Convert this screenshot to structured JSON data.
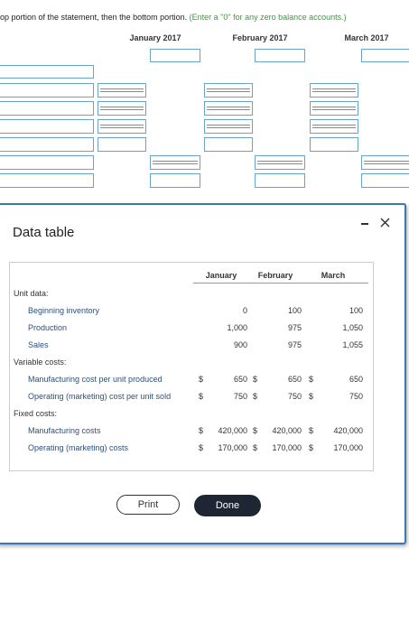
{
  "instruction": {
    "text": "op portion of the statement, then the bottom portion.",
    "note": "(Enter a \"0\" for any zero balance accounts.)"
  },
  "worksheet": {
    "columns": [
      "January 2017",
      "February 2017",
      "March 2017"
    ]
  },
  "dialog": {
    "title": "Data table",
    "table": {
      "columns": [
        "January",
        "February",
        "March"
      ],
      "sections": [
        {
          "title": "Unit data:",
          "rows": [
            {
              "label": "Beginning inventory",
              "values": [
                "0",
                "100",
                "100"
              ]
            },
            {
              "label": "Production",
              "values": [
                "1,000",
                "975",
                "1,050"
              ]
            },
            {
              "label": "Sales",
              "values": [
                "900",
                "975",
                "1,055"
              ]
            }
          ]
        },
        {
          "title": "Variable costs:",
          "rows": [
            {
              "label": "Manufacturing cost per unit produced",
              "currency": "$",
              "values": [
                "650",
                "650",
                "650"
              ]
            },
            {
              "label": "Operating (marketing) cost per unit sold",
              "currency": "$",
              "values": [
                "750",
                "750",
                "750"
              ]
            }
          ]
        },
        {
          "title": "Fixed costs:",
          "rows": [
            {
              "label": "Manufacturing costs",
              "currency": "$",
              "values": [
                "420,000",
                "420,000",
                "420,000"
              ]
            },
            {
              "label": "Operating (marketing) costs",
              "currency": "$",
              "values": [
                "170,000",
                "170,000",
                "170,000"
              ]
            }
          ]
        }
      ]
    },
    "buttons": [
      "Print",
      "Done"
    ]
  }
}
